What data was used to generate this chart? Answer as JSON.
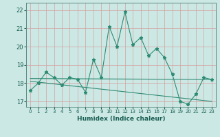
{
  "xlabel": "Humidex (Indice chaleur)",
  "xlim": [
    -0.5,
    23.5
  ],
  "ylim": [
    16.7,
    22.4
  ],
  "yticks": [
    17,
    18,
    19,
    20,
    21,
    22
  ],
  "xticks": [
    0,
    1,
    2,
    3,
    4,
    5,
    6,
    7,
    8,
    9,
    10,
    11,
    12,
    13,
    14,
    15,
    16,
    17,
    18,
    19,
    20,
    21,
    22,
    23
  ],
  "line_x": [
    0,
    1,
    2,
    3,
    4,
    5,
    6,
    7,
    8,
    9,
    10,
    11,
    12,
    13,
    14,
    15,
    16,
    17,
    18,
    19,
    20,
    21,
    22,
    23
  ],
  "line_y": [
    17.6,
    18.0,
    18.6,
    18.3,
    17.9,
    18.3,
    18.2,
    17.5,
    19.3,
    18.3,
    21.1,
    20.0,
    21.9,
    20.1,
    20.5,
    19.5,
    19.9,
    19.4,
    18.5,
    17.0,
    16.85,
    17.4,
    18.3,
    18.2
  ],
  "trend1_x": [
    0,
    23
  ],
  "trend1_y": [
    18.25,
    18.2
  ],
  "trend2_x": [
    0,
    23
  ],
  "trend2_y": [
    18.1,
    17.0
  ],
  "line_color": "#2e8b74",
  "bg_color": "#cce8e4",
  "grid_color": "#d4a0a0",
  "tick_color": "#1a5f54",
  "spine_color": "#5a8a80",
  "marker": "*",
  "marker_size": 3.5,
  "linewidth": 0.8
}
